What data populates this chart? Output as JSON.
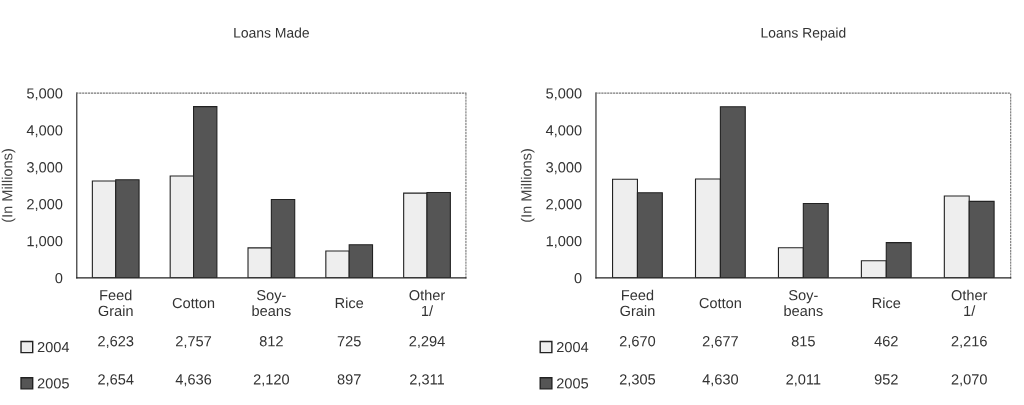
{
  "chart_data": [
    {
      "type": "bar",
      "title": "Loans Made",
      "ylabel": "(In Millions)",
      "categories": [
        "Feed\nGrain",
        "Cotton",
        "Soy-\nbeans",
        "Rice",
        "Other\n1/"
      ],
      "series": [
        {
          "name": "2004",
          "color": "#eeeeee",
          "values": [
            2623,
            2757,
            812,
            725,
            2294
          ],
          "value_labels": [
            "2,623",
            "2,757",
            "812",
            "725",
            "2,294"
          ]
        },
        {
          "name": "2005",
          "color": "#555555",
          "values": [
            2654,
            4636,
            2120,
            897,
            2311
          ],
          "value_labels": [
            "2,654",
            "4,636",
            "2,120",
            "897",
            "2,311"
          ]
        }
      ],
      "ylim": [
        0,
        5000
      ],
      "yticks": [
        0,
        {
          "value": 1000,
          "label": "1,000"
        },
        {
          "value": 2000,
          "label": "2,000"
        },
        {
          "value": 3000,
          "label": "3,000"
        },
        {
          "value": 4000,
          "label": "4,000"
        },
        {
          "value": 5000,
          "label": "5,000"
        }
      ],
      "legend": "bottom left"
    },
    {
      "type": "bar",
      "title": "Loans Repaid",
      "ylabel": "(In Millions)",
      "categories": [
        "Feed\nGrain",
        "Cotton",
        "Soy-\nbeans",
        "Rice",
        "Other\n1/"
      ],
      "series": [
        {
          "name": "2004",
          "color": "#eeeeee",
          "values": [
            2670,
            2677,
            815,
            462,
            2216
          ],
          "value_labels": [
            "2,670",
            "2,677",
            "815",
            "462",
            "2,216"
          ]
        },
        {
          "name": "2005",
          "color": "#555555",
          "values": [
            2305,
            4630,
            2011,
            952,
            2070
          ],
          "value_labels": [
            "2,305",
            "4,630",
            "2,011",
            "952",
            "2,070"
          ]
        }
      ],
      "ylim": [
        0,
        5000
      ],
      "yticks": [
        0,
        {
          "value": 1000,
          "label": "1,000"
        },
        {
          "value": 2000,
          "label": "2,000"
        },
        {
          "value": 3000,
          "label": "3,000"
        },
        {
          "value": 4000,
          "label": "4,000"
        },
        {
          "value": 5000,
          "label": "5,000"
        }
      ],
      "legend": "bottom left"
    }
  ]
}
